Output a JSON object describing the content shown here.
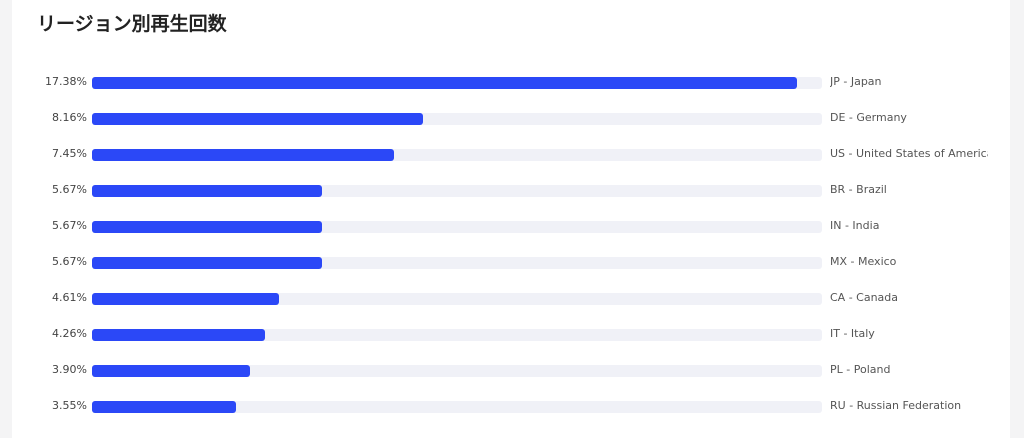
{
  "chart_data": {
    "type": "bar",
    "orientation": "horizontal",
    "title": "リージョン別再生回数",
    "categories": [
      "JP - Japan",
      "DE - Germany",
      "US - United States of America",
      "BR - Brazil",
      "IN - India",
      "MX - Mexico",
      "CA - Canada",
      "IT - Italy",
      "PL - Poland",
      "RU - Russian Federation"
    ],
    "values": [
      17.38,
      8.16,
      7.45,
      5.67,
      5.67,
      5.67,
      4.61,
      4.26,
      3.9,
      3.55
    ],
    "labels": [
      "17.38%",
      "8.16%",
      "7.45%",
      "5.67%",
      "5.67%",
      "5.67%",
      "4.61%",
      "4.26%",
      "3.90%",
      "3.55%"
    ],
    "xlim": [
      0,
      18
    ],
    "colors": {
      "bar": "#2b48f7",
      "track": "#f0f1f7"
    }
  }
}
